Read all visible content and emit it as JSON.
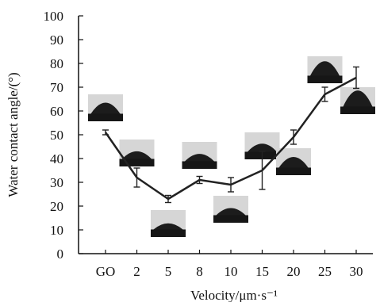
{
  "chart_data": {
    "type": "line",
    "xlabel": "Velocity/μm·s⁻¹",
    "ylabel": "Water contact angle/(°)",
    "categories": [
      "GO",
      "2",
      "5",
      "8",
      "10",
      "15",
      "20",
      "25",
      "30"
    ],
    "yticks": [
      0,
      10,
      20,
      30,
      40,
      50,
      60,
      70,
      80,
      90,
      100
    ],
    "ytick_labels": [
      "0",
      "10",
      "20",
      "30",
      "40",
      "50",
      "60",
      "70",
      "80",
      "90",
      "100"
    ],
    "ylim": [
      0,
      100
    ],
    "grid": false,
    "series": [
      {
        "values": [
          51,
          32,
          23,
          31,
          29,
          35,
          49,
          67,
          74
        ],
        "error": [
          1,
          4,
          1.5,
          1.5,
          3,
          8,
          3,
          3,
          4.5
        ]
      }
    ],
    "droplet_images": [
      {
        "category": "GO",
        "placement": "above"
      },
      {
        "category": "2",
        "placement": "above"
      },
      {
        "category": "5",
        "placement": "below"
      },
      {
        "category": "8",
        "placement": "above"
      },
      {
        "category": "10",
        "placement": "below"
      },
      {
        "category": "15",
        "placement": "above"
      },
      {
        "category": "20",
        "placement": "below"
      },
      {
        "category": "25",
        "placement": "above"
      },
      {
        "category": "30",
        "placement": "right"
      }
    ],
    "colors": {
      "line": "#222222",
      "droplet": "#1c1c1c",
      "substrate_bg": "#d6d6d6"
    }
  }
}
